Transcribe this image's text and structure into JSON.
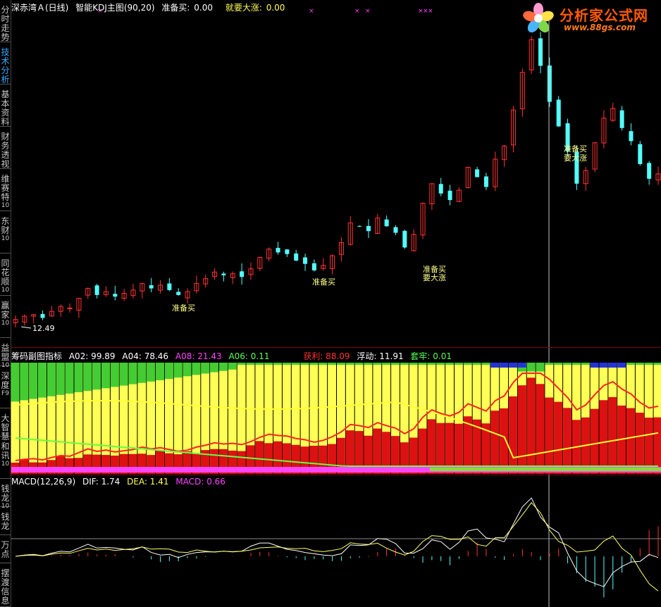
{
  "sidebar": {
    "tabs": [
      {
        "label": "分时走势",
        "sub": "",
        "active": false
      },
      {
        "label": "技术分析",
        "sub": "",
        "active": true
      },
      {
        "label": "基本资料",
        "sub": "",
        "active": false
      },
      {
        "label": "财务透视",
        "sub": "",
        "active": false
      },
      {
        "label": "维赛特",
        "sub": "10",
        "active": false
      },
      {
        "label": "东财",
        "sub": "10",
        "active": false
      },
      {
        "label": "同花顺",
        "sub": "10",
        "active": false
      },
      {
        "label": "赢家",
        "sub": "10",
        "active": false
      },
      {
        "label": "益盟",
        "sub": "10",
        "active": false
      },
      {
        "label": "深度",
        "sub": "F9",
        "active": false
      },
      {
        "label": "大智慧",
        "sub": "",
        "active": false
      },
      {
        "label": "和讯",
        "sub": "10",
        "active": false
      },
      {
        "label": "钱龙",
        "sub": "10",
        "active": false
      },
      {
        "label": "钱龙",
        "sub": "",
        "active": false
      },
      {
        "label": "万点",
        "sub": "",
        "active": false
      },
      {
        "label": "摆渡信息",
        "sub": "",
        "active": false
      }
    ]
  },
  "main_header": {
    "stock": "深赤湾Ａ(日线)",
    "indicator": "智能KDJ主图(90,20)",
    "buy_label": "准备买:",
    "buy_value": "0.00",
    "rise_label": "就要大涨:",
    "rise_value": "0.00"
  },
  "sub_header": {
    "name": "筹码副图指标",
    "a02": "A02: 99.89",
    "a04": "A04: 78.46",
    "a08": "A08: 21.43",
    "a06": "A06: 0.11",
    "profit": "获利: 88.09",
    "float": "浮动: 11.91",
    "trapped": "套牢: 0.01"
  },
  "macd_header": {
    "params": "MACD(12,26,9)",
    "dif": "DIF: 1.74",
    "dea": "DEA: 1.41",
    "macd": "MACD: 0.66"
  },
  "annotations": {
    "low_price": "12.49",
    "signal_buy": "准备买",
    "signal_rise": "要大涨"
  },
  "logo": {
    "title": "分析家公式网",
    "url": "www.88gs.com"
  },
  "colors": {
    "up": "#ff3232",
    "down": "#54ffff",
    "yellow": "#ffff55",
    "red_bar": "#dd1111",
    "green_bar": "#44cc33",
    "magenta": "#ff44ff",
    "blue": "#2233dd",
    "crosshair": "#c0c0c0"
  },
  "chart_data": {
    "type": "candlestick",
    "price_series_approx": [
      12.7,
      12.9,
      13.0,
      12.8,
      13.2,
      13.5,
      13.4,
      14.0,
      14.6,
      14.2,
      14.4,
      14.1,
      14.3,
      14.5,
      14.9,
      14.6,
      14.8,
      14.5,
      14.2,
      14.4,
      14.9,
      15.2,
      15.6,
      15.4,
      15.5,
      15.3,
      15.8,
      16.5,
      17.0,
      16.8,
      16.7,
      16.3,
      16.1,
      15.7,
      16.0,
      16.6,
      17.4,
      18.6,
      18.4,
      18.1,
      18.9,
      18.4,
      18.0,
      17.1,
      17.9,
      19.8,
      21.0,
      20.4,
      20.0,
      20.6,
      22.0,
      21.4,
      20.8,
      22.5,
      23.3,
      25.5,
      27.8,
      29.8,
      28.2,
      26.0,
      24.5,
      23.0,
      21.0,
      21.8,
      23.5,
      25.0,
      25.6,
      24.4,
      23.6,
      22.2,
      21.3,
      21.6
    ]
  }
}
